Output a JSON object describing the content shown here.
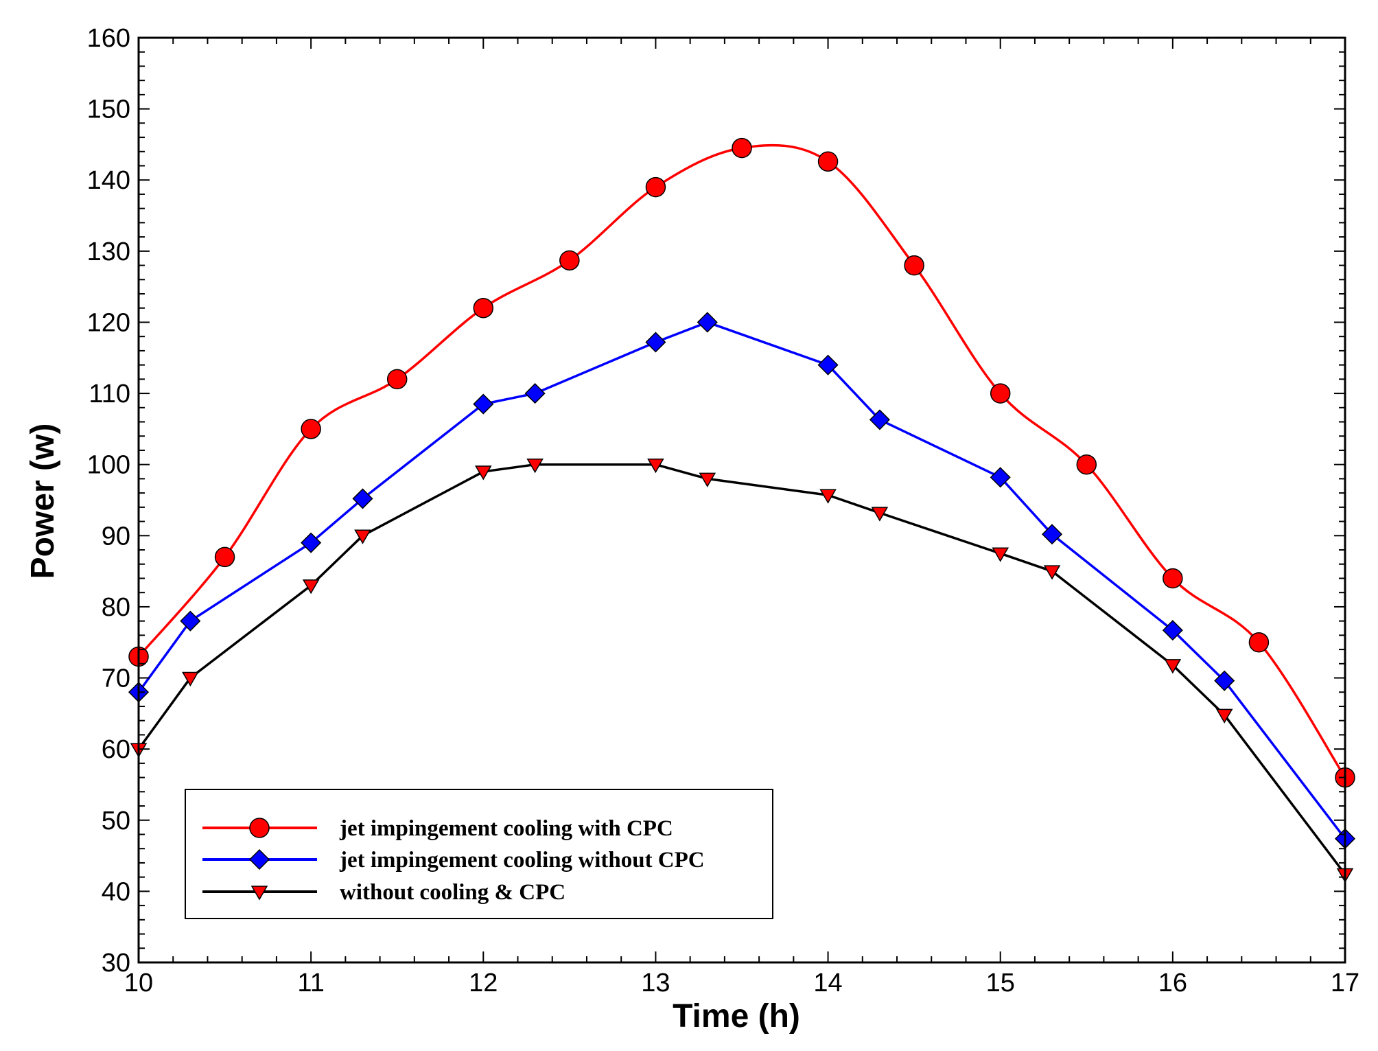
{
  "chart_data": {
    "type": "line",
    "title": "",
    "xlabel": "Time (h)",
    "ylabel": "Power (w)",
    "xlim": [
      10,
      17
    ],
    "ylim": [
      30,
      160
    ],
    "xticks": [
      10,
      11,
      12,
      13,
      14,
      15,
      16,
      17
    ],
    "yticks": [
      30,
      40,
      50,
      60,
      70,
      80,
      90,
      100,
      110,
      120,
      130,
      140,
      150,
      160
    ],
    "grid": false,
    "legend_position": "bottom-left",
    "series": [
      {
        "name": "jet impingement cooling with CPC",
        "color": "#ff0000",
        "marker": "circle",
        "smooth": true,
        "x": [
          10,
          10.5,
          11,
          11.5,
          12,
          12.5,
          13,
          13.5,
          14,
          14.5,
          15,
          15.5,
          16,
          16.5,
          17
        ],
        "y": [
          73,
          87,
          105,
          112,
          122,
          128.7,
          139,
          144.5,
          142.6,
          128,
          110,
          100,
          84,
          75,
          56
        ]
      },
      {
        "name": "jet impingement cooling without CPC",
        "color": "#0000ff",
        "marker": "diamond",
        "smooth": false,
        "x": [
          10,
          10.3,
          11,
          11.3,
          12,
          12.3,
          13,
          13.3,
          14,
          14.3,
          15,
          15.3,
          16,
          16.3,
          17
        ],
        "y": [
          68,
          78,
          89,
          95.2,
          108.5,
          110,
          117.2,
          120,
          114,
          106.3,
          98.2,
          90.2,
          76.7,
          69.6,
          47.4
        ]
      },
      {
        "name": "without cooling & CPC",
        "color": "#000000",
        "marker": "triangle-down",
        "smooth": false,
        "x": [
          10,
          10.3,
          11,
          11.3,
          12,
          12.3,
          13,
          13.3,
          14,
          14.3,
          15,
          15.3,
          16,
          16.3,
          17
        ],
        "y": [
          60,
          70,
          83,
          90,
          99,
          100,
          100,
          98,
          95.7,
          93.2,
          87.5,
          85,
          71.8,
          64.8,
          42.4
        ]
      }
    ]
  }
}
